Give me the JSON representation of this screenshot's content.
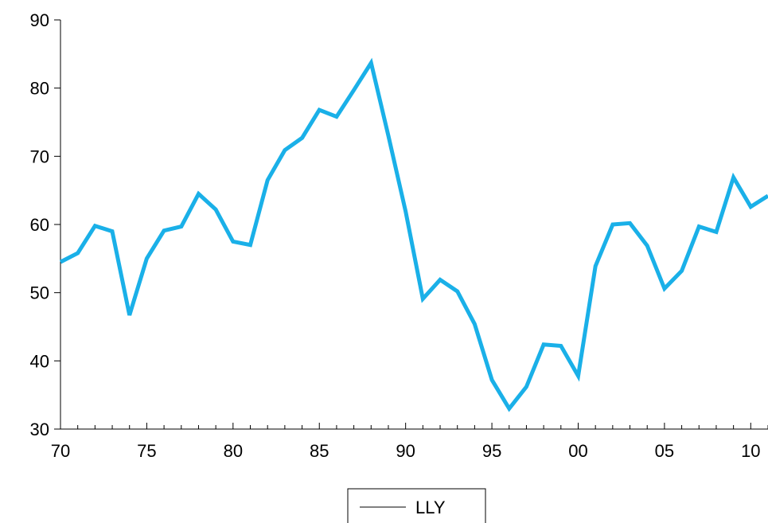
{
  "chart_data": {
    "type": "line",
    "title": "",
    "xlabel": "",
    "ylabel": "",
    "ylim": [
      30,
      90
    ],
    "xlim": [
      1970,
      2011
    ],
    "yticks": [
      30,
      40,
      50,
      60,
      70,
      80,
      90
    ],
    "xticks": [
      {
        "value": 1970,
        "label": "70"
      },
      {
        "value": 1975,
        "label": "75"
      },
      {
        "value": 1980,
        "label": "80"
      },
      {
        "value": 1985,
        "label": "85"
      },
      {
        "value": 1990,
        "label": "90"
      },
      {
        "value": 1995,
        "label": "95"
      },
      {
        "value": 2000,
        "label": "00"
      },
      {
        "value": 2005,
        "label": "05"
      },
      {
        "value": 2010,
        "label": "10"
      }
    ],
    "grid": false,
    "legend_position": "bottom-center",
    "series": [
      {
        "name": "LLY",
        "color": "#1ab0e8",
        "x": [
          1970,
          1971,
          1972,
          1973,
          1974,
          1975,
          1976,
          1977,
          1978,
          1979,
          1980,
          1981,
          1982,
          1983,
          1984,
          1985,
          1986,
          1987,
          1988,
          1989,
          1990,
          1991,
          1992,
          1993,
          1994,
          1995,
          1996,
          1997,
          1998,
          1999,
          2000,
          2001,
          2002,
          2003,
          2004,
          2005,
          2006,
          2007,
          2008,
          2009,
          2010,
          2011
        ],
        "values": [
          54.5,
          55.8,
          59.8,
          59.0,
          46.7,
          55.0,
          59.1,
          59.7,
          64.5,
          62.2,
          57.5,
          57.0,
          66.5,
          70.9,
          72.7,
          76.8,
          75.8,
          79.7,
          83.7,
          73.0,
          61.9,
          49.1,
          51.9,
          50.2,
          45.4,
          37.2,
          33.0,
          36.2,
          42.4,
          42.2,
          37.8,
          53.9,
          60.0,
          60.2,
          56.9,
          50.6,
          53.2,
          59.7,
          58.9,
          66.9,
          62.6,
          64.2
        ]
      }
    ]
  }
}
